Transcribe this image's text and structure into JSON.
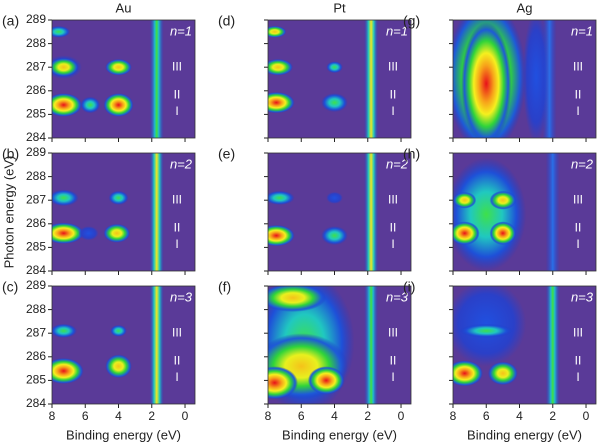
{
  "columns": [
    "Au",
    "Pt",
    "Ag"
  ],
  "y_label": "Photon energy (eV)",
  "x_label": "Binding energy (eV)",
  "chart_data": [
    {
      "type": "heatmap",
      "panel": "(a)",
      "n_label": "n=1",
      "regions": [
        "III",
        "II",
        "I"
      ],
      "xlim": [
        8,
        -0.6
      ],
      "ylim": [
        284,
        289
      ],
      "xticks": [
        8,
        6,
        4,
        2,
        0
      ],
      "yticks": [
        284,
        285,
        286,
        287,
        288,
        289
      ]
    },
    {
      "type": "heatmap",
      "panel": "(b)",
      "n_label": "n=2",
      "regions": [
        "III",
        "II",
        "I"
      ],
      "xlim": [
        8,
        -0.6
      ],
      "ylim": [
        284,
        289
      ],
      "xticks": [
        8,
        6,
        4,
        2,
        0
      ],
      "yticks": [
        284,
        285,
        286,
        287,
        288,
        289
      ]
    },
    {
      "type": "heatmap",
      "panel": "(c)",
      "n_label": "n=3",
      "regions": [
        "III",
        "II",
        "I"
      ],
      "xlim": [
        8,
        -0.6
      ],
      "ylim": [
        284,
        289
      ],
      "xticks": [
        8,
        6,
        4,
        2,
        0
      ],
      "yticks": [
        284,
        285,
        286,
        287,
        288,
        289
      ]
    },
    {
      "type": "heatmap",
      "panel": "(d)",
      "n_label": "n=1",
      "regions": [
        "III",
        "II",
        "I"
      ],
      "xlim": [
        8,
        -0.6
      ],
      "ylim": [
        284,
        289
      ],
      "xticks": [
        8,
        6,
        4,
        2,
        0
      ],
      "yticks": [
        284,
        285,
        286,
        287,
        288,
        289
      ]
    },
    {
      "type": "heatmap",
      "panel": "(e)",
      "n_label": "n=2",
      "regions": [
        "III",
        "II",
        "I"
      ],
      "xlim": [
        8,
        -0.6
      ],
      "ylim": [
        284,
        289
      ],
      "xticks": [
        8,
        6,
        4,
        2,
        0
      ],
      "yticks": [
        284,
        285,
        286,
        287,
        288,
        289
      ]
    },
    {
      "type": "heatmap",
      "panel": "(f)",
      "n_label": "n=3",
      "regions": [
        "III",
        "II",
        "I"
      ],
      "xlim": [
        8,
        -0.6
      ],
      "ylim": [
        284,
        289
      ],
      "xticks": [
        8,
        6,
        4,
        2,
        0
      ],
      "yticks": [
        284,
        285,
        286,
        287,
        288,
        289
      ]
    },
    {
      "type": "heatmap",
      "panel": "(g)",
      "n_label": "n=1",
      "regions": [
        "III",
        "II",
        "I"
      ],
      "xlim": [
        8,
        -0.6
      ],
      "ylim": [
        284,
        289
      ],
      "xticks": [
        8,
        6,
        4,
        2,
        0
      ],
      "yticks": [
        284,
        285,
        286,
        287,
        288,
        289
      ]
    },
    {
      "type": "heatmap",
      "panel": "(h)",
      "n_label": "n=2",
      "regions": [
        "III",
        "II",
        "I"
      ],
      "xlim": [
        8,
        -0.6
      ],
      "ylim": [
        284,
        289
      ],
      "xticks": [
        8,
        6,
        4,
        2,
        0
      ],
      "yticks": [
        284,
        285,
        286,
        287,
        288,
        289
      ]
    },
    {
      "type": "heatmap",
      "panel": "(i)",
      "n_label": "n=3",
      "regions": [
        "III",
        "II",
        "I"
      ],
      "xlim": [
        8,
        -0.6
      ],
      "ylim": [
        284,
        289
      ],
      "xticks": [
        8,
        6,
        4,
        2,
        0
      ],
      "yticks": [
        284,
        285,
        286,
        287,
        288,
        289
      ]
    }
  ]
}
